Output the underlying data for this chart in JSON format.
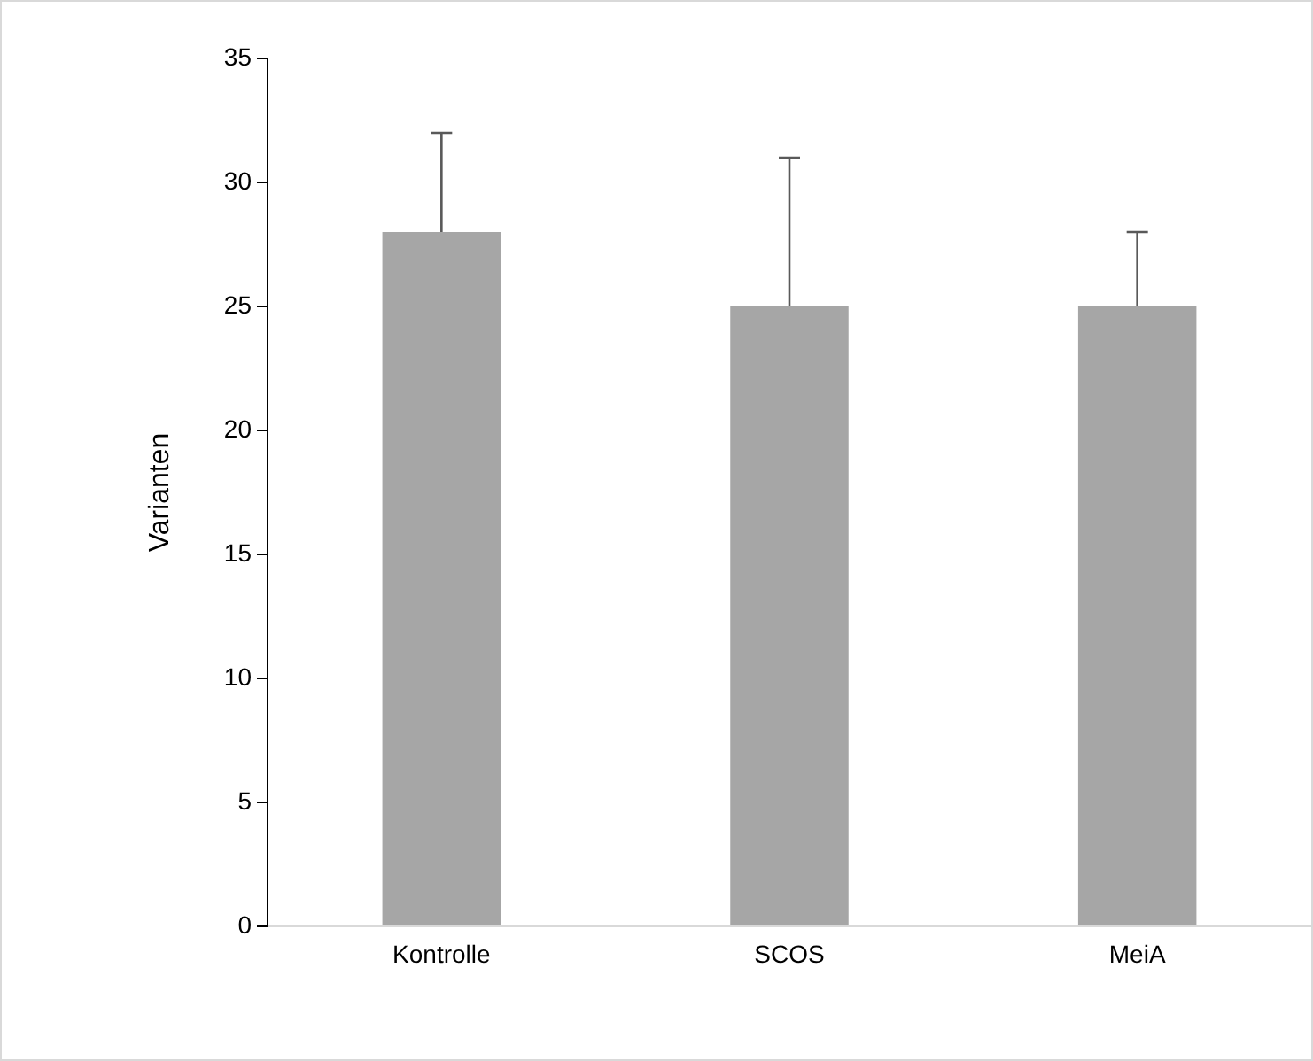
{
  "chart_data": {
    "type": "bar",
    "ylabel": "Varianten",
    "categories": [
      "Kontrolle",
      "SCOS",
      "MeiA"
    ],
    "values": [
      28,
      25,
      25
    ],
    "color": "#a6a6a6",
    "errors": [
      [
        28,
        32
      ],
      [
        25,
        31
      ],
      [
        25,
        28
      ]
    ],
    "ylim": [
      0,
      35
    ],
    "yticks": [
      0,
      5,
      10,
      15,
      20,
      25,
      30,
      35
    ],
    "grid": false,
    "legend": false
  }
}
